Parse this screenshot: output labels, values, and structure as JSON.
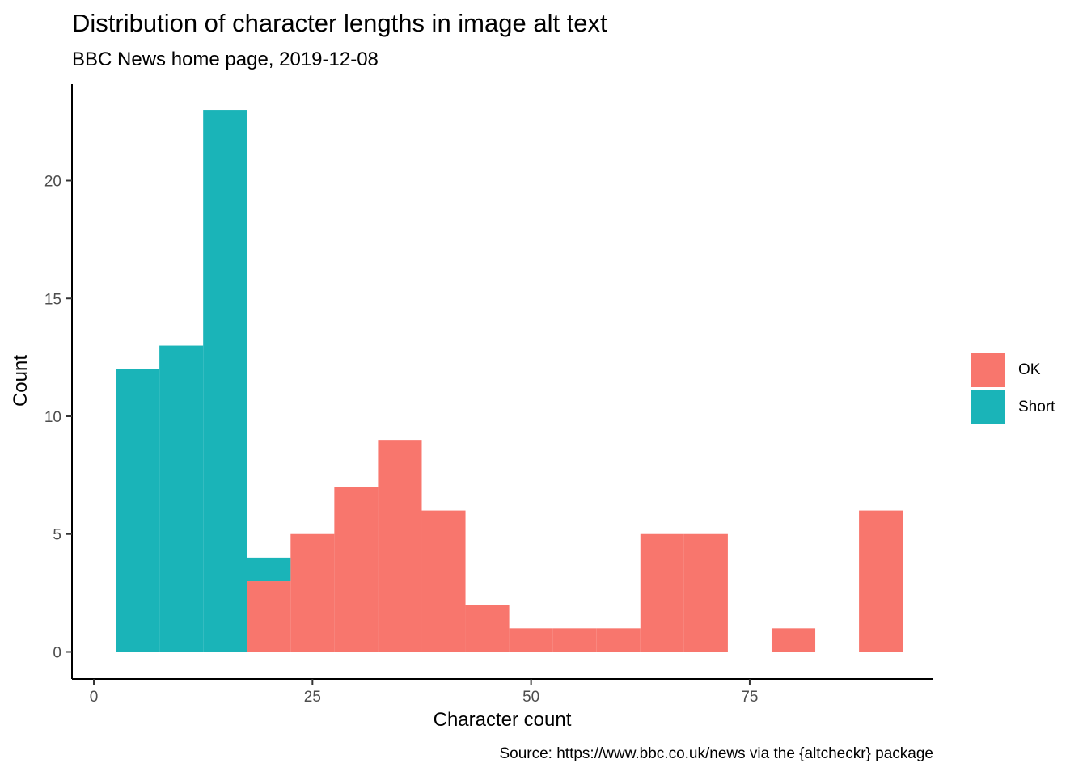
{
  "chart_data": {
    "type": "histogram",
    "title": "Distribution of character lengths in image alt text",
    "subtitle": "BBC News home page, 2019-12-08",
    "caption": "Source: https://www.bbc.co.uk/news via the {altcheckr} package",
    "xlabel": "Character count",
    "ylabel": "Count",
    "x_ticks": [
      0,
      25,
      50,
      75
    ],
    "y_ticks": [
      0,
      5,
      10,
      15,
      20
    ],
    "xlim": [
      -2.5,
      96
    ],
    "ylim": [
      -1.15,
      24.1
    ],
    "bin_width": 5,
    "stacked": true,
    "legend_position": "right",
    "series": [
      {
        "name": "OK",
        "color": "#F8766D",
        "bins": [
          {
            "x0": 17.5,
            "x1": 22.5,
            "count": 3
          },
          {
            "x0": 22.5,
            "x1": 27.5,
            "count": 5
          },
          {
            "x0": 27.5,
            "x1": 32.5,
            "count": 7
          },
          {
            "x0": 32.5,
            "x1": 37.5,
            "count": 9
          },
          {
            "x0": 37.5,
            "x1": 42.5,
            "count": 6
          },
          {
            "x0": 42.5,
            "x1": 47.5,
            "count": 2
          },
          {
            "x0": 47.5,
            "x1": 52.5,
            "count": 1
          },
          {
            "x0": 52.5,
            "x1": 57.5,
            "count": 1
          },
          {
            "x0": 57.5,
            "x1": 62.5,
            "count": 1
          },
          {
            "x0": 62.5,
            "x1": 67.5,
            "count": 5
          },
          {
            "x0": 67.5,
            "x1": 72.5,
            "count": 5
          },
          {
            "x0": 77.5,
            "x1": 82.5,
            "count": 1
          },
          {
            "x0": 87.5,
            "x1": 92.5,
            "count": 6
          }
        ]
      },
      {
        "name": "Short",
        "color": "#1AB4B8",
        "bins": [
          {
            "x0": 2.5,
            "x1": 7.5,
            "count": 12
          },
          {
            "x0": 7.5,
            "x1": 12.5,
            "count": 13
          },
          {
            "x0": 12.5,
            "x1": 17.5,
            "count": 23
          },
          {
            "x0": 17.5,
            "x1": 22.5,
            "count": 1
          }
        ]
      }
    ]
  }
}
